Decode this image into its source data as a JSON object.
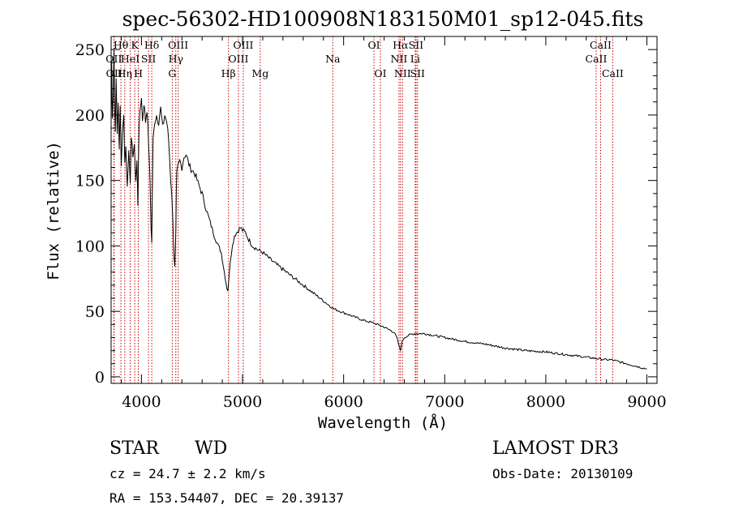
{
  "chart_data": {
    "type": "line",
    "title": "spec-56302-HD100908N183150M01_sp12-045.fits",
    "xlabel": "Wavelength (Å)",
    "ylabel": "Flux (relative)",
    "xlim": [
      3700,
      9100
    ],
    "ylim": [
      -5,
      260
    ],
    "x_ticks": [
      4000,
      5000,
      6000,
      7000,
      8000,
      9000
    ],
    "x_tick_labels": [
      "4000",
      "5000",
      "6000",
      "7000",
      "8000",
      "9000"
    ],
    "y_ticks": [
      0,
      50,
      100,
      150,
      200,
      250
    ],
    "y_tick_labels": [
      "0",
      "50",
      "100",
      "150",
      "200",
      "250"
    ],
    "grid": false,
    "series": [
      {
        "name": "flux",
        "x": [
          3700,
          3705,
          3712,
          3720,
          3728,
          3735,
          3742,
          3750,
          3760,
          3770,
          3780,
          3790,
          3800,
          3812,
          3825,
          3835,
          3845,
          3860,
          3875,
          3889,
          3900,
          3915,
          3930,
          3945,
          3955,
          3965,
          3970,
          3975,
          3985,
          4000,
          4010,
          4025,
          4040,
          4055,
          4070,
          4085,
          4095,
          4102,
          4108,
          4115,
          4130,
          4150,
          4170,
          4190,
          4210,
          4230,
          4250,
          4270,
          4290,
          4300,
          4310,
          4320,
          4330,
          4335,
          4340,
          4345,
          4350,
          4360,
          4380,
          4400,
          4420,
          4440,
          4460,
          4480,
          4500,
          4530,
          4560,
          4600,
          4640,
          4680,
          4720,
          4760,
          4790,
          4810,
          4830,
          4845,
          4855,
          4861,
          4867,
          4880,
          4900,
          4920,
          4940,
          4960,
          4980,
          5000,
          5030,
          5060,
          5100,
          5150,
          5200,
          5300,
          5400,
          5500,
          5600,
          5700,
          5800,
          5900,
          6000,
          6100,
          6200,
          6300,
          6400,
          6450,
          6500,
          6530,
          6550,
          6563,
          6575,
          6600,
          6650,
          6700,
          6750,
          6800,
          7000,
          7200,
          7400,
          7600,
          7800,
          8000,
          8200,
          8400,
          8500,
          8550,
          8600,
          8650,
          8700,
          8800,
          8900,
          9000
        ],
        "values": [
          195,
          240,
          200,
          215,
          250,
          205,
          190,
          225,
          185,
          210,
          175,
          205,
          160,
          190,
          200,
          165,
          175,
          145,
          175,
          150,
          180,
          170,
          175,
          150,
          165,
          130,
          165,
          190,
          200,
          215,
          195,
          210,
          195,
          205,
          180,
          150,
          115,
          102,
          140,
          180,
          195,
          200,
          195,
          205,
          190,
          200,
          195,
          180,
          150,
          140,
          120,
          95,
          85,
          95,
          110,
          140,
          155,
          160,
          165,
          160,
          168,
          170,
          165,
          160,
          158,
          155,
          148,
          140,
          128,
          118,
          108,
          100,
          95,
          85,
          75,
          68,
          66,
          70,
          78,
          90,
          100,
          108,
          110,
          112,
          114,
          112,
          110,
          105,
          100,
          97,
          95,
          88,
          82,
          76,
          70,
          64,
          58,
          52,
          49,
          46,
          43,
          41,
          38,
          36,
          34,
          29,
          23,
          20,
          26,
          30,
          32,
          33,
          33,
          33,
          30,
          27,
          25,
          22,
          20,
          19,
          17,
          15,
          14,
          13.5,
          13,
          13,
          12,
          10,
          8,
          6
        ]
      }
    ],
    "spectral_lines": [
      {
        "label": "OII",
        "x": 3727,
        "row": 2
      },
      {
        "label": "OII",
        "x": 3730,
        "row": 3
      },
      {
        "label": "Hθ",
        "x": 3797,
        "row": 1
      },
      {
        "label": "Hη",
        "x": 3835,
        "row": 3
      },
      {
        "label": "HeI",
        "x": 3889,
        "row": 2
      },
      {
        "label": "K",
        "x": 3934,
        "row": 1
      },
      {
        "label": "H",
        "x": 3969,
        "row": 3
      },
      {
        "label": "SII",
        "x": 4070,
        "row": 2
      },
      {
        "label": "Hδ",
        "x": 4102,
        "row": 1
      },
      {
        "label": "OIII",
        "x": 4363,
        "row": 1
      },
      {
        "label": "Hγ",
        "x": 4340,
        "row": 2
      },
      {
        "label": "G",
        "x": 4305,
        "row": 3
      },
      {
        "label": "Hβ",
        "x": 4861,
        "row": 3
      },
      {
        "label": "OIII",
        "x": 5007,
        "row": 1
      },
      {
        "label": "OIII",
        "x": 4959,
        "row": 2
      },
      {
        "label": "Mg",
        "x": 5175,
        "row": 3
      },
      {
        "label": "Na",
        "x": 5893,
        "row": 2
      },
      {
        "label": "OI",
        "x": 6300,
        "row": 1
      },
      {
        "label": "OI",
        "x": 6364,
        "row": 3
      },
      {
        "label": "Hα",
        "x": 6563,
        "row": 1
      },
      {
        "label": "NII",
        "x": 6548,
        "row": 2
      },
      {
        "label": "NII",
        "x": 6583,
        "row": 3
      },
      {
        "label": "SII",
        "x": 6716,
        "row": 1
      },
      {
        "label": "Li",
        "x": 6708,
        "row": 2
      },
      {
        "label": "SII",
        "x": 6731,
        "row": 3
      },
      {
        "label": "CaII",
        "x": 8542,
        "row": 1
      },
      {
        "label": "CaII",
        "x": 8498,
        "row": 2
      },
      {
        "label": "CaII",
        "x": 8662,
        "row": 3
      }
    ],
    "line_marker_color": "#cc0000",
    "annotations": {
      "object_class": "STAR",
      "subclass": "WD",
      "survey": "LAMOST DR3",
      "redshift": "cz = 24.7 ± 2.2 km/s",
      "obs_date": "Obs-Date: 20130109",
      "coords": "RA = 153.54407, DEC =  20.39137"
    }
  }
}
